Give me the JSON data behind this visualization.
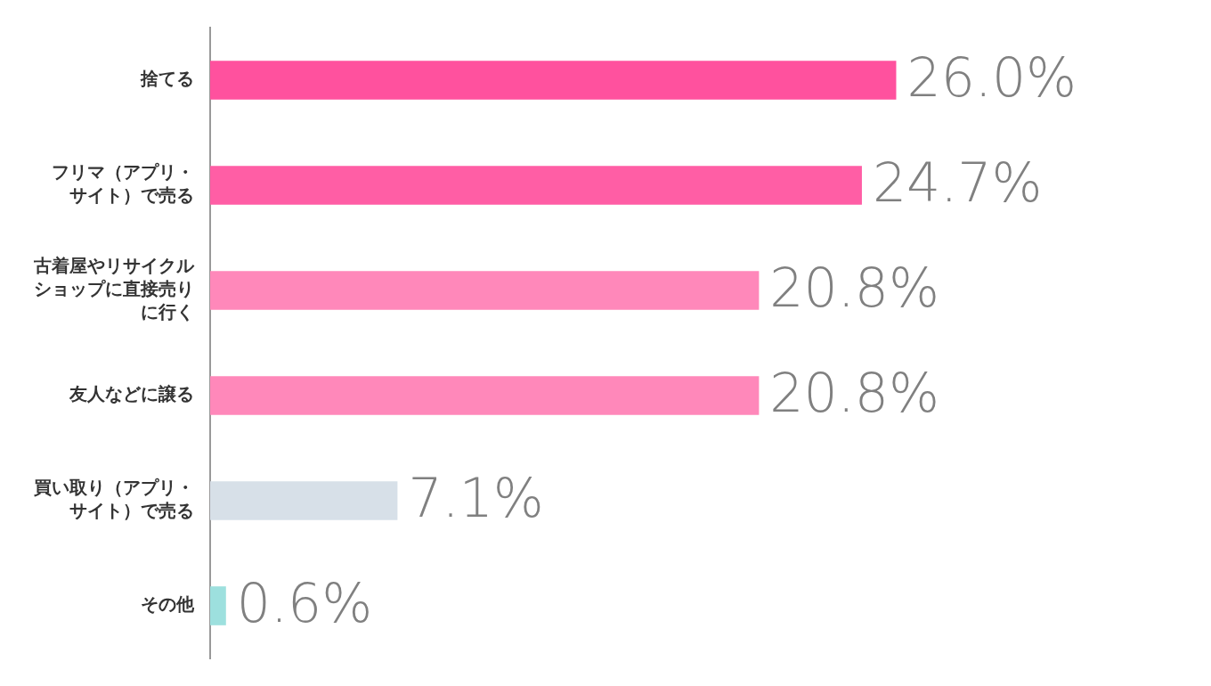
{
  "chart_data": {
    "type": "bar",
    "orientation": "horizontal",
    "categories": [
      "捨てる",
      "フリマ（アプリ・サイト）で売る",
      "古着屋やリサイクルショップに直接売りに行く",
      "友人などに譲る",
      "買い取り（アプリ・サイト）で売る",
      "その他"
    ],
    "values": [
      26.0,
      24.7,
      20.8,
      20.8,
      7.1,
      0.6
    ],
    "colors": [
      "#ff519e",
      "#ff5ea5",
      "#ff88ba",
      "#ff88ba",
      "#d7e0e8",
      "#9de0de"
    ],
    "value_labels": [
      "26.0%",
      "24.7%",
      "20.8%",
      "20.8%",
      "7.1%",
      "0.6%"
    ],
    "legend": false
  }
}
